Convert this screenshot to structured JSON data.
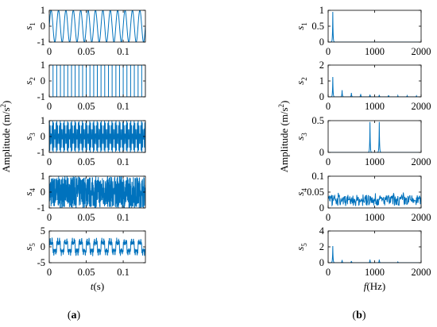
{
  "chart_data": [
    {
      "type": "line",
      "panel_label": {
        "open": "(",
        "letter": "a",
        "close": ")"
      },
      "ylabel": "Amplitude (m/s",
      "ylabel_sup": "2",
      "ylabel_close": ")",
      "xlabel": {
        "var": "t",
        "unit": "(s)"
      },
      "line_color": "#0072BD",
      "subplots": [
        {
          "label": {
            "sym": "s",
            "sub": "1"
          },
          "xlim": [
            0,
            0.13
          ],
          "ylim": [
            -1,
            1
          ],
          "xticks": [
            "0",
            "0.05",
            "0.1"
          ],
          "yticks": [
            "-1",
            "0",
            "1"
          ],
          "signal": {
            "kind": "sine",
            "freq_hz": 100,
            "amplitude": 1
          }
        },
        {
          "label": {
            "sym": "s",
            "sub": "2"
          },
          "xlim": [
            0,
            0.13
          ],
          "ylim": [
            -1,
            1
          ],
          "xticks": [
            "0",
            "0.05",
            "0.1"
          ],
          "yticks": [
            "-1",
            "0",
            "1"
          ],
          "signal": {
            "kind": "square",
            "freq_hz": 100,
            "amplitude": 1
          }
        },
        {
          "label": {
            "sym": "s",
            "sub": "3"
          },
          "xlim": [
            0,
            0.13
          ],
          "ylim": [
            -1,
            1
          ],
          "xticks": [
            "0",
            "0.05",
            "0.1"
          ],
          "yticks": [
            "-1",
            "0",
            "1"
          ],
          "signal": {
            "kind": "am",
            "carrier_hz": 1000,
            "mod_hz": 100,
            "amplitude": 1
          }
        },
        {
          "label": {
            "sym": "s",
            "sub": "4"
          },
          "xlim": [
            0,
            0.13
          ],
          "ylim": [
            -1,
            1
          ],
          "xticks": [
            "0",
            "0.05",
            "0.1"
          ],
          "yticks": [
            "-1",
            "0",
            "1"
          ],
          "signal": {
            "kind": "noise",
            "amplitude": 1
          }
        },
        {
          "label": {
            "sym": "s",
            "sub": "5"
          },
          "xlim": [
            0,
            0.13
          ],
          "ylim": [
            -5,
            5
          ],
          "xticks": [
            "0",
            "0.05",
            "0.1"
          ],
          "yticks": [
            "-5",
            "0",
            "5"
          ],
          "signal": {
            "kind": "mixture",
            "amplitude": 3
          }
        }
      ]
    },
    {
      "type": "line",
      "panel_label": {
        "open": "(",
        "letter": "b",
        "close": ")"
      },
      "ylabel": "Amplitude (m/s",
      "ylabel_sup": "2",
      "ylabel_close": ")",
      "xlabel": {
        "var": "f",
        "unit": "(Hz)"
      },
      "line_color": "#0072BD",
      "subplots": [
        {
          "label": {
            "sym": "s",
            "sub": "1"
          },
          "xlim": [
            0,
            2000
          ],
          "ylim": [
            0,
            1
          ],
          "xticks": [
            "0",
            "1000",
            "2000"
          ],
          "yticks": [
            "0",
            "0.5",
            "1"
          ],
          "peaks": [
            [
              100,
              0.95
            ]
          ],
          "floor": 0.0
        },
        {
          "label": {
            "sym": "s",
            "sub": "2"
          },
          "xlim": [
            0,
            2000
          ],
          "ylim": [
            0,
            2
          ],
          "xticks": [
            "0",
            "1000",
            "2000"
          ],
          "yticks": [
            "0",
            "1",
            "2"
          ],
          "peaks": [
            [
              100,
              1.25
            ],
            [
              300,
              0.42
            ],
            [
              500,
              0.25
            ],
            [
              700,
              0.18
            ],
            [
              900,
              0.14
            ],
            [
              1100,
              0.12
            ],
            [
              1300,
              0.1
            ],
            [
              1500,
              0.08
            ],
            [
              1700,
              0.07
            ],
            [
              1900,
              0.06
            ]
          ],
          "floor": 0.0
        },
        {
          "label": {
            "sym": "s",
            "sub": "3"
          },
          "xlim": [
            0,
            2000
          ],
          "ylim": [
            0,
            0.5
          ],
          "xticks": [
            "0",
            "1000",
            "2000"
          ],
          "yticks": [
            "0",
            "0.5"
          ],
          "peaks": [
            [
              900,
              0.48
            ],
            [
              1100,
              0.48
            ]
          ],
          "floor": 0.0
        },
        {
          "label": {
            "sym": "s",
            "sub": "4"
          },
          "xlim": [
            0,
            2000
          ],
          "ylim": [
            0,
            0.1
          ],
          "xticks": [
            "0",
            "1000",
            "2000"
          ],
          "yticks": [
            "0",
            "0.05",
            "0.1"
          ],
          "noise_level": 0.025,
          "floor": 0.0
        },
        {
          "label": {
            "sym": "s",
            "sub": "5"
          },
          "xlim": [
            0,
            2000
          ],
          "ylim": [
            0,
            4
          ],
          "xticks": [
            "0",
            "1000",
            "2000"
          ],
          "yticks": [
            "0",
            "2",
            "4"
          ],
          "peaks": [
            [
              100,
              2.1
            ],
            [
              300,
              0.35
            ],
            [
              500,
              0.2
            ],
            [
              900,
              0.4
            ],
            [
              1100,
              0.4
            ],
            [
              1500,
              0.1
            ]
          ],
          "floor": 0.0
        }
      ]
    }
  ]
}
